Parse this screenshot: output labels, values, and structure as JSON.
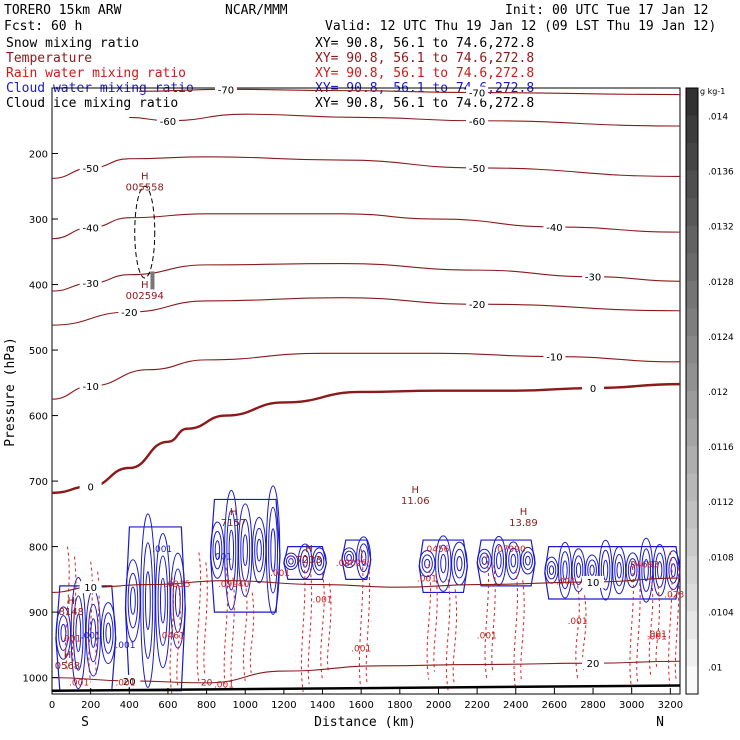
{
  "header": {
    "model": "TORERO  15km ARW",
    "org": "NCAR/MMM",
    "init": "Init: 00 UTC Tue 17 Jan 12",
    "fcst": "Fcst:   60 h",
    "valid": "Valid: 12 UTC Thu 19 Jan 12 (09 LST Thu 19 Jan 12)"
  },
  "fields": [
    {
      "name": "Snow mixing ratio",
      "xy": "XY=  90.8, 56.1 to  74.6,272.8",
      "color": "#000000"
    },
    {
      "name": "Temperature",
      "xy": "XY=  90.8, 56.1 to  74.6,272.8",
      "color": "#8b1a1a"
    },
    {
      "name": "Rain water mixing ratio",
      "xy": "XY=  90.8, 56.1 to  74.6,272.8",
      "color": "#d11a1a"
    },
    {
      "name": "Cloud water mixing ratio",
      "xy": "XY=  90.8, 56.1 to  74.6,272.8",
      "color": "#1a1acc"
    },
    {
      "name": "Cloud ice mixing ratio",
      "xy": "XY=  90.8, 56.1 to  74.6,272.8",
      "color": "#000000"
    }
  ],
  "chart_data": {
    "type": "cross-section contour",
    "xlabel": "Distance (km)",
    "ylabel": "Pressure (hPa)",
    "xlim": [
      0,
      3250
    ],
    "ylim": [
      1025,
      100
    ],
    "x_ticks": [
      0,
      200,
      400,
      600,
      800,
      1000,
      1200,
      1400,
      1600,
      1800,
      2000,
      2200,
      2400,
      2600,
      2800,
      3000,
      3200
    ],
    "y_ticks": [
      200,
      300,
      400,
      500,
      600,
      700,
      800,
      900,
      1000
    ],
    "endpoints": {
      "left": "S",
      "right": "N"
    },
    "colorbar": {
      "unit": "g kg-1",
      "labels": [
        ".014",
        ".0136",
        ".0132",
        ".0128",
        ".0124",
        ".012",
        ".0116",
        ".0112",
        ".0108",
        ".0104",
        ".01"
      ],
      "levels": [
        0.014,
        0.0136,
        0.0132,
        0.0128,
        0.0124,
        0.012,
        0.0116,
        0.0112,
        0.0108,
        0.0104,
        0.01
      ]
    },
    "temperature_isotherms": [
      {
        "label": "-70",
        "points": [
          [
            450,
            105
          ],
          [
            900,
            102
          ],
          [
            1500,
            104
          ],
          [
            2200,
            107
          ],
          [
            3250,
            110
          ]
        ]
      },
      {
        "label": "-60",
        "points": [
          [
            400,
            145
          ],
          [
            600,
            150
          ],
          [
            1000,
            140
          ],
          [
            1600,
            145
          ],
          [
            2200,
            150
          ],
          [
            3250,
            158
          ]
        ]
      },
      {
        "label": "-50",
        "points": [
          [
            0,
            238
          ],
          [
            200,
            222
          ],
          [
            400,
            208
          ],
          [
            800,
            205
          ],
          [
            1500,
            210
          ],
          [
            2200,
            222
          ],
          [
            3250,
            235
          ]
        ]
      },
      {
        "label": "-40",
        "points": [
          [
            0,
            330
          ],
          [
            200,
            313
          ],
          [
            400,
            298
          ],
          [
            800,
            292
          ],
          [
            1500,
            292
          ],
          [
            2000,
            300
          ],
          [
            2600,
            312
          ],
          [
            3250,
            320
          ]
        ]
      },
      {
        "label": "-30",
        "points": [
          [
            0,
            410
          ],
          [
            200,
            398
          ],
          [
            400,
            385
          ],
          [
            800,
            370
          ],
          [
            1500,
            368
          ],
          [
            2200,
            378
          ],
          [
            2800,
            388
          ],
          [
            3250,
            395
          ]
        ]
      },
      {
        "label": "-20",
        "points": [
          [
            0,
            462
          ],
          [
            400,
            442
          ],
          [
            800,
            425
          ],
          [
            1500,
            420
          ],
          [
            2200,
            430
          ],
          [
            3250,
            440
          ]
        ]
      },
      {
        "label": "-10",
        "points": [
          [
            0,
            575
          ],
          [
            200,
            555
          ],
          [
            500,
            530
          ],
          [
            800,
            515
          ],
          [
            1400,
            505
          ],
          [
            2000,
            505
          ],
          [
            2600,
            510
          ],
          [
            3250,
            518
          ]
        ]
      },
      {
        "label": "0",
        "points": [
          [
            0,
            718
          ],
          [
            200,
            708
          ],
          [
            400,
            680
          ],
          [
            600,
            640
          ],
          [
            700,
            620
          ],
          [
            900,
            600
          ],
          [
            1200,
            580
          ],
          [
            1600,
            564
          ],
          [
            2000,
            562
          ],
          [
            2400,
            562
          ],
          [
            2800,
            558
          ],
          [
            3250,
            552
          ]
        ]
      },
      {
        "label": "10",
        "points": [
          [
            0,
            870
          ],
          [
            200,
            862
          ],
          [
            500,
            858
          ],
          [
            900,
            852
          ],
          [
            1400,
            858
          ],
          [
            1800,
            862
          ],
          [
            2200,
            858
          ],
          [
            2800,
            854
          ],
          [
            3250,
            848
          ]
        ]
      },
      {
        "label": "20",
        "points": [
          [
            0,
            1000
          ],
          [
            400,
            1005
          ],
          [
            800,
            1008
          ],
          [
            1200,
            990
          ],
          [
            1700,
            982
          ],
          [
            2200,
            980
          ],
          [
            2800,
            978
          ],
          [
            3250,
            975
          ]
        ]
      }
    ],
    "maxima": [
      {
        "symbol": "H",
        "value": "005558",
        "x": 480,
        "pressure": 240
      },
      {
        "symbol": "H",
        "value": "002594",
        "x": 480,
        "pressure": 405
      },
      {
        "symbol": "H",
        "value": "11.06",
        "x": 1880,
        "pressure": 718
      },
      {
        "symbol": "H",
        "value": "13.89",
        "x": 2440,
        "pressure": 752
      },
      {
        "symbol": "H",
        "value": "7157",
        "x": 940,
        "pressure": 752
      },
      {
        "symbol": "H",
        "value": "7233",
        "x": 1330,
        "pressure": 808
      },
      {
        "symbol": "H",
        "value": "8148",
        "x": 100,
        "pressure": 888
      },
      {
        "symbol": "H",
        "value": "0568",
        "x": 80,
        "pressure": 970
      }
    ],
    "contour_labels": [
      {
        "text": ".001",
        "x": 570,
        "pressure": 808,
        "color": "#1a1acc"
      },
      {
        "text": ".001",
        "x": 880,
        "pressure": 820,
        "color": "#1a1acc"
      },
      {
        "text": ".0935",
        "x": 650,
        "pressure": 862,
        "color": "#d11a1a"
      },
      {
        "text": ".09940",
        "x": 940,
        "pressure": 862,
        "color": "#d11a1a"
      },
      {
        "text": ".001",
        "x": 1180,
        "pressure": 845,
        "color": "#d11a1a"
      },
      {
        "text": ".08025",
        "x": 1550,
        "pressure": 830,
        "color": "#d11a1a"
      },
      {
        "text": ".0456",
        "x": 1990,
        "pressure": 808,
        "color": "#d11a1a"
      },
      {
        "text": ".07990",
        "x": 2370,
        "pressure": 808,
        "color": "#d11a1a"
      },
      {
        "text": ".001",
        "x": 2660,
        "pressure": 858,
        "color": "#d11a1a"
      },
      {
        "text": ".001",
        "x": 1940,
        "pressure": 853,
        "color": "#d11a1a"
      },
      {
        "text": ".001",
        "x": 1400,
        "pressure": 885,
        "color": "#d11a1a"
      },
      {
        "text": ".04693",
        "x": 3060,
        "pressure": 832,
        "color": "#d11a1a"
      },
      {
        "text": ".001",
        "x": 2720,
        "pressure": 918,
        "color": "#d11a1a"
      },
      {
        "text": ".001",
        "x": 2250,
        "pressure": 940,
        "color": "#d11a1a"
      },
      {
        "text": ".001",
        "x": 3130,
        "pressure": 942,
        "color": "#d11a1a"
      },
      {
        "text": ".023",
        "x": 3220,
        "pressure": 878,
        "color": "#d11a1a"
      },
      {
        "text": ".0461",
        "x": 620,
        "pressure": 940,
        "color": "#d11a1a"
      },
      {
        "text": ".001",
        "x": 1600,
        "pressure": 960,
        "color": "#d11a1a"
      },
      {
        "text": ".001",
        "x": 380,
        "pressure": 955,
        "color": "#1a1acc"
      },
      {
        "text": ".001",
        "x": 200,
        "pressure": 940,
        "color": "#1a1acc"
      },
      {
        "text": ".001",
        "x": 380,
        "pressure": 1012,
        "color": "#d11a1a"
      },
      {
        "text": ".001",
        "x": 890,
        "pressure": 1015,
        "color": "#d11a1a"
      },
      {
        "text": "20",
        "x": 800,
        "pressure": 1012,
        "color": "#8b1a1a"
      },
      {
        "text": ".001",
        "x": 140,
        "pressure": 1012,
        "color": "#d11a1a"
      },
      {
        "text": ".001",
        "x": 100,
        "pressure": 945,
        "color": "#d11a1a"
      },
      {
        "text": ".001",
        "x": 3130,
        "pressure": 938,
        "color": "#d11a1a"
      }
    ],
    "cloud_features": [
      {
        "x_start": 20,
        "x_end": 330,
        "p_top": 860,
        "p_bottom": 1020
      },
      {
        "x_start": 380,
        "x_end": 690,
        "p_top": 770,
        "p_bottom": 1020
      },
      {
        "x_start": 820,
        "x_end": 1180,
        "p_top": 728,
        "p_bottom": 900
      },
      {
        "x_start": 1200,
        "x_end": 1420,
        "p_top": 800,
        "p_bottom": 850
      },
      {
        "x_start": 1500,
        "x_end": 1650,
        "p_top": 790,
        "p_bottom": 850
      },
      {
        "x_start": 1900,
        "x_end": 2150,
        "p_top": 790,
        "p_bottom": 870
      },
      {
        "x_start": 2200,
        "x_end": 2500,
        "p_top": 790,
        "p_bottom": 860
      },
      {
        "x_start": 2550,
        "x_end": 3250,
        "p_top": 800,
        "p_bottom": 880
      }
    ],
    "rain_shafts": [
      80,
      200,
      620,
      760,
      900,
      1000,
      1300,
      1400,
      1600,
      1950,
      2050,
      2250,
      2400,
      2720,
      3000,
      3100,
      3200
    ]
  }
}
